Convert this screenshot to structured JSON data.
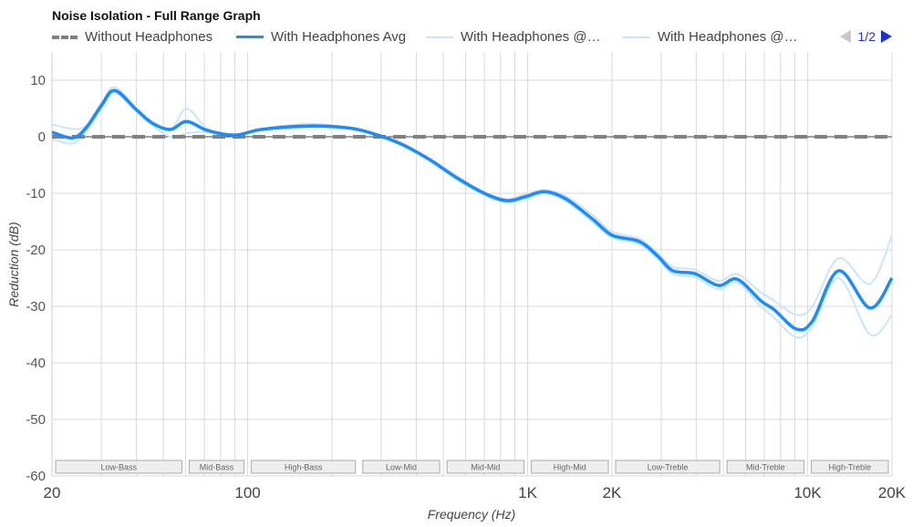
{
  "title": "Noise Isolation - Full Range Graph",
  "legend": {
    "items": [
      {
        "label": "Without Headphones",
        "style": "dashed",
        "color": "#808080"
      },
      {
        "label": "With Headphones Avg",
        "style": "solid",
        "color": "#1a8cff"
      },
      {
        "label": "With Headphones @…",
        "style": "solid-light",
        "color": "#c9e4ff"
      },
      {
        "label": "With Headphones @…",
        "style": "solid-light",
        "color": "#c9e4ff"
      }
    ],
    "page": "1/2"
  },
  "chart_data": {
    "type": "line",
    "title": "Noise Isolation - Full Range Graph",
    "xlabel": "Frequency (Hz)",
    "ylabel": "Reduction (dB)",
    "xscale": "log",
    "xlim": [
      20,
      20000
    ],
    "ylim": [
      -60,
      15
    ],
    "x_ticks": [
      {
        "value": 20,
        "label": "20"
      },
      {
        "value": 100,
        "label": "100"
      },
      {
        "value": 1000,
        "label": "1K"
      },
      {
        "value": 2000,
        "label": "2K"
      },
      {
        "value": 10000,
        "label": "10K"
      },
      {
        "value": 20000,
        "label": "20K"
      }
    ],
    "y_ticks": [
      10,
      0,
      -10,
      -20,
      -30,
      -40,
      -50,
      -60
    ],
    "grid": true,
    "legend_position": "top",
    "bands": [
      {
        "label": "Low-Bass",
        "from": 20,
        "to": 60
      },
      {
        "label": "Mid-Bass",
        "from": 60,
        "to": 100
      },
      {
        "label": "High-Bass",
        "from": 100,
        "to": 250
      },
      {
        "label": "Low-Mid",
        "from": 250,
        "to": 500
      },
      {
        "label": "Mid-Mid",
        "from": 500,
        "to": 1000
      },
      {
        "label": "High-Mid",
        "from": 1000,
        "to": 2000
      },
      {
        "label": "Low-Treble",
        "from": 2000,
        "to": 5000
      },
      {
        "label": "Mid-Treble",
        "from": 5000,
        "to": 10000
      },
      {
        "label": "High-Treble",
        "from": 10000,
        "to": 20000
      }
    ],
    "x": [
      20,
      23.7,
      26.5,
      30,
      33.5,
      40,
      45.7,
      53,
      60.5,
      72,
      90,
      112,
      163,
      226,
      283,
      354,
      445,
      560,
      700,
      840,
      980,
      1150,
      1370,
      1700,
      2000,
      2500,
      2900,
      3300,
      3950,
      4800,
      5600,
      6800,
      7600,
      9100,
      10400,
      12900,
      16700,
      20000
    ],
    "series": [
      {
        "name": "Without Headphones",
        "values": [
          0,
          0,
          0,
          0,
          0,
          0,
          0,
          0,
          0,
          0,
          0,
          0,
          0,
          0,
          0,
          0,
          0,
          0,
          0,
          0,
          0,
          0,
          0,
          0,
          0,
          0,
          0,
          0,
          0,
          0,
          0,
          0,
          0,
          0,
          0,
          0,
          0,
          0
        ]
      },
      {
        "name": "With Headphones Avg",
        "values": [
          0.8,
          -0.2,
          1.6,
          5.5,
          8.2,
          4.8,
          2.4,
          1.3,
          2.7,
          1.1,
          0.3,
          1.3,
          1.9,
          1.6,
          0.5,
          -1.3,
          -4.0,
          -7.3,
          -10.0,
          -11.3,
          -10.6,
          -9.7,
          -11.0,
          -14.5,
          -17.4,
          -18.5,
          -21.0,
          -23.7,
          -24.2,
          -26.3,
          -25.2,
          -29.0,
          -30.6,
          -34.0,
          -32.6,
          -23.7,
          -30.3,
          -25.0
        ]
      },
      {
        "name": "With Headphones @ (1)",
        "values": [
          2.2,
          1.4,
          2.0,
          6.0,
          8.8,
          5.0,
          2.6,
          1.2,
          5.0,
          1.4,
          0.3,
          1.4,
          2.3,
          1.7,
          0.6,
          -1.1,
          -3.8,
          -7.0,
          -9.8,
          -11.0,
          -10.2,
          -9.4,
          -10.5,
          -13.8,
          -16.8,
          -18.0,
          -20.5,
          -23.0,
          -23.5,
          -25.5,
          -24.3,
          -27.5,
          -29.0,
          -31.5,
          -30.0,
          -21.5,
          -26.0,
          -17.5
        ]
      },
      {
        "name": "With Headphones @ (2)",
        "values": [
          -0.4,
          -1.2,
          1.0,
          5.0,
          7.8,
          4.5,
          2.0,
          0.0,
          0.6,
          0.9,
          0.2,
          1.1,
          1.6,
          1.5,
          0.4,
          -1.5,
          -4.2,
          -7.6,
          -10.3,
          -11.6,
          -11.0,
          -10.0,
          -11.4,
          -15.0,
          -17.8,
          -19.0,
          -21.5,
          -24.3,
          -24.8,
          -27.0,
          -25.8,
          -30.0,
          -32.0,
          -35.5,
          -33.5,
          -25.0,
          -35.0,
          -31.5
        ]
      }
    ]
  },
  "axes": {
    "xlabel": "Frequency (Hz)",
    "ylabel": "Reduction (dB)"
  }
}
